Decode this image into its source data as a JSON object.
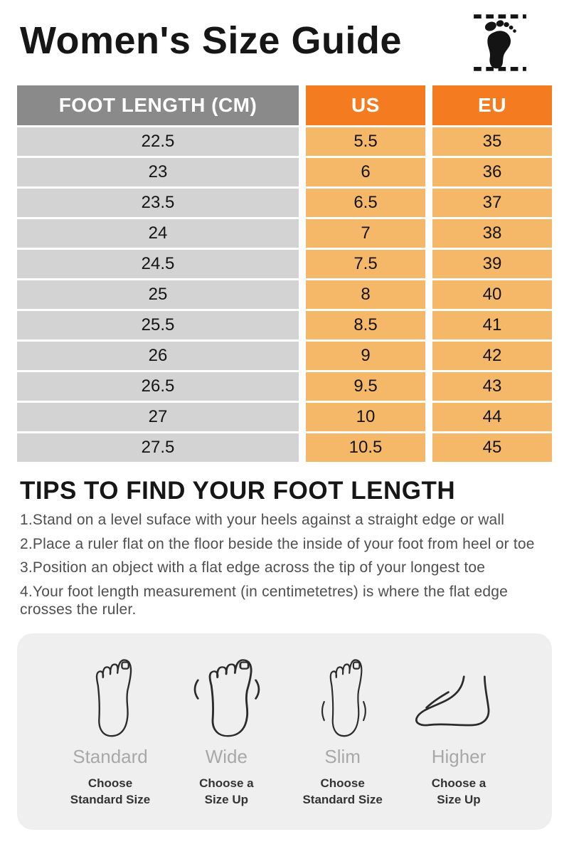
{
  "header": {
    "title": "Women's Size Guide",
    "icon": "footprint-icon"
  },
  "chart_data": {
    "type": "table",
    "title": "Women's Size Guide",
    "columns": [
      "FOOT LENGTH (CM)",
      "US",
      "EU"
    ],
    "rows": [
      [
        "22.5",
        "5.5",
        "35"
      ],
      [
        "23",
        "6",
        "36"
      ],
      [
        "23.5",
        "6.5",
        "37"
      ],
      [
        "24",
        "7",
        "38"
      ],
      [
        "24.5",
        "7.5",
        "39"
      ],
      [
        "25",
        "8",
        "40"
      ],
      [
        "25.5",
        "8.5",
        "41"
      ],
      [
        "26",
        "9",
        "42"
      ],
      [
        "26.5",
        "9.5",
        "43"
      ],
      [
        "27",
        "10",
        "44"
      ],
      [
        "27.5",
        "10.5",
        "45"
      ]
    ]
  },
  "tips": {
    "title": "TIPS TO FIND YOUR FOOT LENGTH",
    "items": [
      "1.Stand on a level suface with your heels against a straight edge or wall",
      "2.Place a ruler flat on the floor beside the inside of your foot from heel or toe",
      "3.Position an object with a flat edge across the tip of your longest toe",
      "4.Your foot length measurement (in centimetetres) is where the flat edge crosses the ruler."
    ]
  },
  "foot_types": [
    {
      "label": "Standard",
      "advice": [
        "Choose",
        "Standard Size"
      ],
      "icon": "foot-standard-icon"
    },
    {
      "label": "Wide",
      "advice": [
        "Choose a",
        "Size Up"
      ],
      "icon": "foot-wide-icon"
    },
    {
      "label": "Slim",
      "advice": [
        "Choose",
        "Standard Size"
      ],
      "icon": "foot-slim-icon"
    },
    {
      "label": "Higher",
      "advice": [
        "Choose a",
        "Size Up"
      ],
      "icon": "foot-higher-icon"
    }
  ],
  "colors": {
    "header_orange": "#F47B20",
    "cell_orange": "#F5B768",
    "header_gray": "#8A8A8A",
    "cell_gray": "#D3D3D3",
    "panel_bg": "#F0EFEF",
    "title_text": "#161616",
    "tips_text": "#4F4F4F",
    "foot_label_gray": "#A8A8A8"
  }
}
